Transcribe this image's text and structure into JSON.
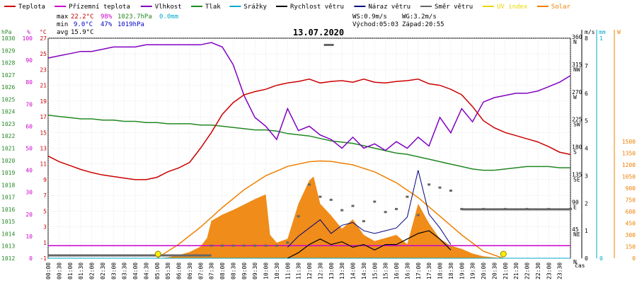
{
  "chart_data": {
    "type": "line",
    "date": "13.07.2020",
    "legend": [
      {
        "label": "Teplota",
        "color": "#cc0000"
      },
      {
        "label": "Přízemní teplota",
        "color": "#cc00cc"
      },
      {
        "label": "Vlhkost",
        "color": "#8000c0"
      },
      {
        "label": "Tlak",
        "color": "#228822"
      },
      {
        "label": "Srážky",
        "color": "#00aacc"
      },
      {
        "label": "Rychlost větru",
        "color": "#000000"
      },
      {
        "label": "Náraz větru",
        "color": "#000080"
      },
      {
        "label": "Směr větru",
        "color": "#666666"
      },
      {
        "label": "UV index",
        "color": "#e8d800"
      },
      {
        "label": "Solar",
        "color": "#ee8000"
      }
    ],
    "stats": {
      "max_label": "max",
      "min_label": "min",
      "avg_label": "avg",
      "max_temp": "22.2°C",
      "max_hum": "98%",
      "max_press": "1023.7hPa",
      "max_rain": "0.0mm",
      "min_temp": "9.0°C",
      "min_hum": "47%",
      "min_press": "1019hPa",
      "avg_temp": "15.9°C",
      "ws": "WS:0.9m/s",
      "wg": "WG:3.2m/s",
      "sunrise": "Východ:05:03",
      "sunset": "Západ:20:55"
    },
    "axis_units": {
      "pressure": "hPa",
      "humidity": "%",
      "temp": "°C",
      "wind": "m/s",
      "rain": "mm",
      "solar": "W",
      "x": "čas"
    },
    "axes": {
      "pressure": {
        "range": [
          1012,
          1030
        ],
        "ticks": [
          "1012",
          "1013",
          "1014",
          "1015",
          "1016",
          "1017",
          "1018",
          "1019",
          "1020",
          "1021",
          "1022",
          "1023",
          "1024",
          "1025",
          "1026",
          "1027",
          "1028",
          "1029",
          "1030"
        ],
        "color": "#228822"
      },
      "humidity": {
        "range": [
          0,
          100
        ],
        "ticks": [
          "0",
          "10",
          "20",
          "30",
          "40",
          "50",
          "60",
          "70",
          "80",
          "90",
          "100"
        ],
        "color": "#cc00cc"
      },
      "temp": {
        "range": [
          -1,
          27
        ],
        "ticks": [
          "-1",
          "1",
          "3",
          "5",
          "7",
          "9",
          "11",
          "13",
          "15",
          "17",
          "19",
          "21",
          "23",
          "25",
          "27"
        ],
        "color": "#cc0000"
      },
      "wind_dir": {
        "ticks": [
          "N",
          "NE",
          "E",
          "SE",
          "S",
          "SW",
          "W",
          "NW",
          "N"
        ],
        "degrees": [
          "45",
          "90",
          "135",
          "180",
          "225",
          "270",
          "315",
          "360"
        ]
      },
      "wind": {
        "range": [
          0,
          8
        ],
        "ticks": [
          "0",
          "1",
          "2",
          "3",
          "4",
          "5",
          "6",
          "7",
          "8"
        ]
      },
      "rain": {
        "range": [
          0,
          1
        ],
        "ticks": [
          "0",
          "1"
        ],
        "color": "#00aacc"
      },
      "solar": {
        "range": [
          0,
          1500
        ],
        "ticks": [
          "0",
          "150",
          "300",
          "450",
          "600",
          "750",
          "900",
          "1050",
          "1200",
          "1350",
          "1500"
        ],
        "color": "#ee8000"
      },
      "x_ticks": [
        "00:00",
        "00:30",
        "01:00",
        "01:30",
        "02:00",
        "02:30",
        "03:00",
        "03:30",
        "04:00",
        "04:30",
        "05:00",
        "05:30",
        "06:00",
        "06:30",
        "07:00",
        "07:30",
        "08:00",
        "08:30",
        "09:00",
        "09:30",
        "10:00",
        "10:30",
        "11:00",
        "11:30",
        "12:00",
        "12:30",
        "13:00",
        "13:30",
        "14:00",
        "14:30",
        "15:00",
        "15:30",
        "16:00",
        "16:30",
        "17:00",
        "17:30",
        "18:00",
        "18:30",
        "19:00",
        "19:30",
        "20:00",
        "20:30",
        "21:00",
        "21:30",
        "22:00",
        "22:30",
        "23:00",
        "23:30"
      ]
    },
    "series": [
      {
        "name": "Teplota",
        "unit": "°C",
        "x": [
          0,
          0.5,
          1,
          1.5,
          2,
          2.5,
          3,
          3.5,
          4,
          4.5,
          5,
          5.5,
          6,
          6.5,
          7,
          7.5,
          8,
          8.5,
          9,
          9.5,
          10,
          10.5,
          11,
          11.5,
          12,
          12.5,
          13,
          13.5,
          14,
          14.5,
          15,
          15.5,
          16,
          16.5,
          17,
          17.5,
          18,
          18.5,
          19,
          19.5,
          20,
          20.5,
          21,
          21.5,
          22,
          22.5,
          23,
          23.5,
          24
        ],
        "y": [
          12.0,
          11.3,
          10.8,
          10.3,
          9.9,
          9.6,
          9.4,
          9.2,
          9.0,
          9.0,
          9.3,
          10.0,
          10.5,
          11.2,
          13.0,
          15.0,
          17.3,
          18.8,
          19.8,
          20.2,
          20.5,
          21.0,
          21.3,
          21.5,
          21.8,
          21.3,
          21.5,
          21.6,
          21.4,
          21.8,
          21.4,
          21.3,
          21.5,
          21.6,
          21.8,
          21.2,
          21.0,
          20.5,
          19.8,
          18.3,
          16.5,
          15.6,
          15.0,
          14.6,
          14.2,
          13.8,
          13.2,
          12.5,
          12.2
        ]
      },
      {
        "name": "Přízemní teplota",
        "unit": "°C",
        "x": [
          0,
          24
        ],
        "y": [
          0.6,
          0.6
        ]
      },
      {
        "name": "Vlhkost",
        "unit": "%",
        "x": [
          0,
          0.5,
          1,
          1.5,
          2,
          2.5,
          3,
          3.5,
          4,
          4.5,
          5,
          5.5,
          6,
          6.5,
          7,
          7.5,
          8,
          8.5,
          9,
          9.5,
          10,
          10.5,
          11,
          11.5,
          12,
          12.5,
          13,
          13.5,
          14,
          14.5,
          15,
          15.5,
          16,
          16.5,
          17,
          17.5,
          18,
          18.5,
          19,
          19.5,
          20,
          20.5,
          21,
          21.5,
          22,
          22.5,
          23,
          23.5,
          24
        ],
        "y": [
          91,
          92,
          93,
          94,
          94,
          95,
          96,
          96,
          96,
          97,
          97,
          97,
          97,
          97,
          97,
          98,
          96,
          88,
          74,
          64,
          60,
          54,
          68,
          58,
          60,
          56,
          54,
          50,
          55,
          50,
          52,
          49,
          53,
          50,
          55,
          51,
          64,
          57,
          68,
          62,
          71,
          73,
          74,
          75,
          75,
          76,
          78,
          80,
          83
        ]
      },
      {
        "name": "Tlak",
        "unit": "hPa",
        "x": [
          0,
          0.5,
          1,
          1.5,
          2,
          2.5,
          3,
          3.5,
          4,
          4.5,
          5,
          5.5,
          6,
          6.5,
          7,
          7.5,
          8,
          8.5,
          9,
          9.5,
          10,
          10.5,
          11,
          11.5,
          12,
          12.5,
          13,
          13.5,
          14,
          14.5,
          15,
          15.5,
          16,
          16.5,
          17,
          17.5,
          18,
          18.5,
          19,
          19.5,
          20,
          20.5,
          21,
          21.5,
          22,
          22.5,
          23,
          23.5,
          24
        ],
        "y": [
          1023.7,
          1023.6,
          1023.5,
          1023.4,
          1023.4,
          1023.3,
          1023.3,
          1023.2,
          1023.2,
          1023.1,
          1023.1,
          1023.0,
          1023.0,
          1023.0,
          1022.9,
          1022.9,
          1022.8,
          1022.7,
          1022.6,
          1022.5,
          1022.5,
          1022.4,
          1022.2,
          1022.1,
          1022.0,
          1021.8,
          1021.6,
          1021.5,
          1021.4,
          1021.2,
          1021.0,
          1020.8,
          1020.6,
          1020.5,
          1020.3,
          1020.1,
          1019.9,
          1019.7,
          1019.5,
          1019.3,
          1019.2,
          1019.2,
          1019.3,
          1019.4,
          1019.5,
          1019.5,
          1019.5,
          1019.4,
          1019.4
        ]
      },
      {
        "name": "Srážky",
        "unit": "mm",
        "x": [
          0,
          24
        ],
        "y": [
          0,
          0
        ]
      },
      {
        "name": "Rychlost větru",
        "unit": "m/s",
        "x": [
          11,
          11.5,
          12,
          12.5,
          13,
          13.5,
          14,
          14.5,
          15,
          15.5,
          16,
          16.5,
          17,
          17.5,
          18,
          18.5
        ],
        "y": [
          0,
          0.2,
          0.5,
          0.7,
          0.5,
          0.6,
          0.4,
          0.5,
          0.3,
          0.5,
          0.5,
          0.7,
          0.9,
          1.0,
          0.7,
          0.3
        ]
      },
      {
        "name": "Náraz větru",
        "unit": "m/s",
        "x": [
          11,
          11.5,
          12,
          12.5,
          13,
          13.5,
          14,
          14.5,
          15,
          15.5,
          16,
          16.5,
          17,
          17.5,
          18,
          18.5
        ],
        "y": [
          0.4,
          0.8,
          1.1,
          1.4,
          0.9,
          1.2,
          1.3,
          1.0,
          0.9,
          1.0,
          1.1,
          1.5,
          3.2,
          1.6,
          1.1,
          0.5
        ]
      },
      {
        "name": "Směr větru",
        "unit": "°",
        "x": [
          7.5,
          8,
          8.5,
          9,
          9.5,
          10,
          10.5,
          11,
          11.5,
          12,
          12.5,
          13,
          13.5,
          14,
          14.5,
          15,
          15.5,
          16,
          16.5,
          17,
          17.5,
          18,
          18.5,
          19,
          20,
          21,
          22,
          23,
          24
        ],
        "y": [
          20,
          20,
          20,
          20,
          20,
          20,
          20,
          25,
          68,
          120,
          100,
          95,
          78,
          85,
          60,
          92,
          75,
          80,
          100,
          70,
          120,
          115,
          110,
          80,
          80,
          80,
          80,
          80,
          80
        ]
      },
      {
        "name": "Solar",
        "unit": "W",
        "x": [
          0,
          5,
          5.5,
          6,
          6.5,
          7,
          7.3,
          7.5,
          8,
          8.5,
          9,
          9.5,
          10,
          10.2,
          10.5,
          11,
          11.5,
          12,
          12.2,
          12.5,
          13,
          13.5,
          14,
          14.5,
          15,
          15.5,
          16,
          16.5,
          17,
          17.5,
          18,
          18.5,
          19,
          19.5,
          20,
          20.5,
          21,
          24
        ],
        "y": [
          0,
          0,
          10,
          40,
          80,
          150,
          260,
          480,
          560,
          620,
          690,
          760,
          820,
          300,
          200,
          250,
          700,
          1000,
          1050,
          700,
          550,
          380,
          500,
          300,
          220,
          260,
          300,
          180,
          700,
          450,
          250,
          160,
          120,
          60,
          25,
          10,
          0,
          0
        ]
      },
      {
        "name": "Solar max",
        "unit": "W",
        "x": [
          5,
          6,
          7,
          8,
          9,
          10,
          11,
          12,
          12.5,
          13,
          14,
          15,
          16,
          17,
          18,
          19,
          20,
          20.9
        ],
        "y": [
          0,
          180,
          400,
          650,
          880,
          1060,
          1180,
          1240,
          1250,
          1245,
          1200,
          1110,
          970,
          780,
          540,
          300,
          90,
          0
        ]
      }
    ]
  }
}
